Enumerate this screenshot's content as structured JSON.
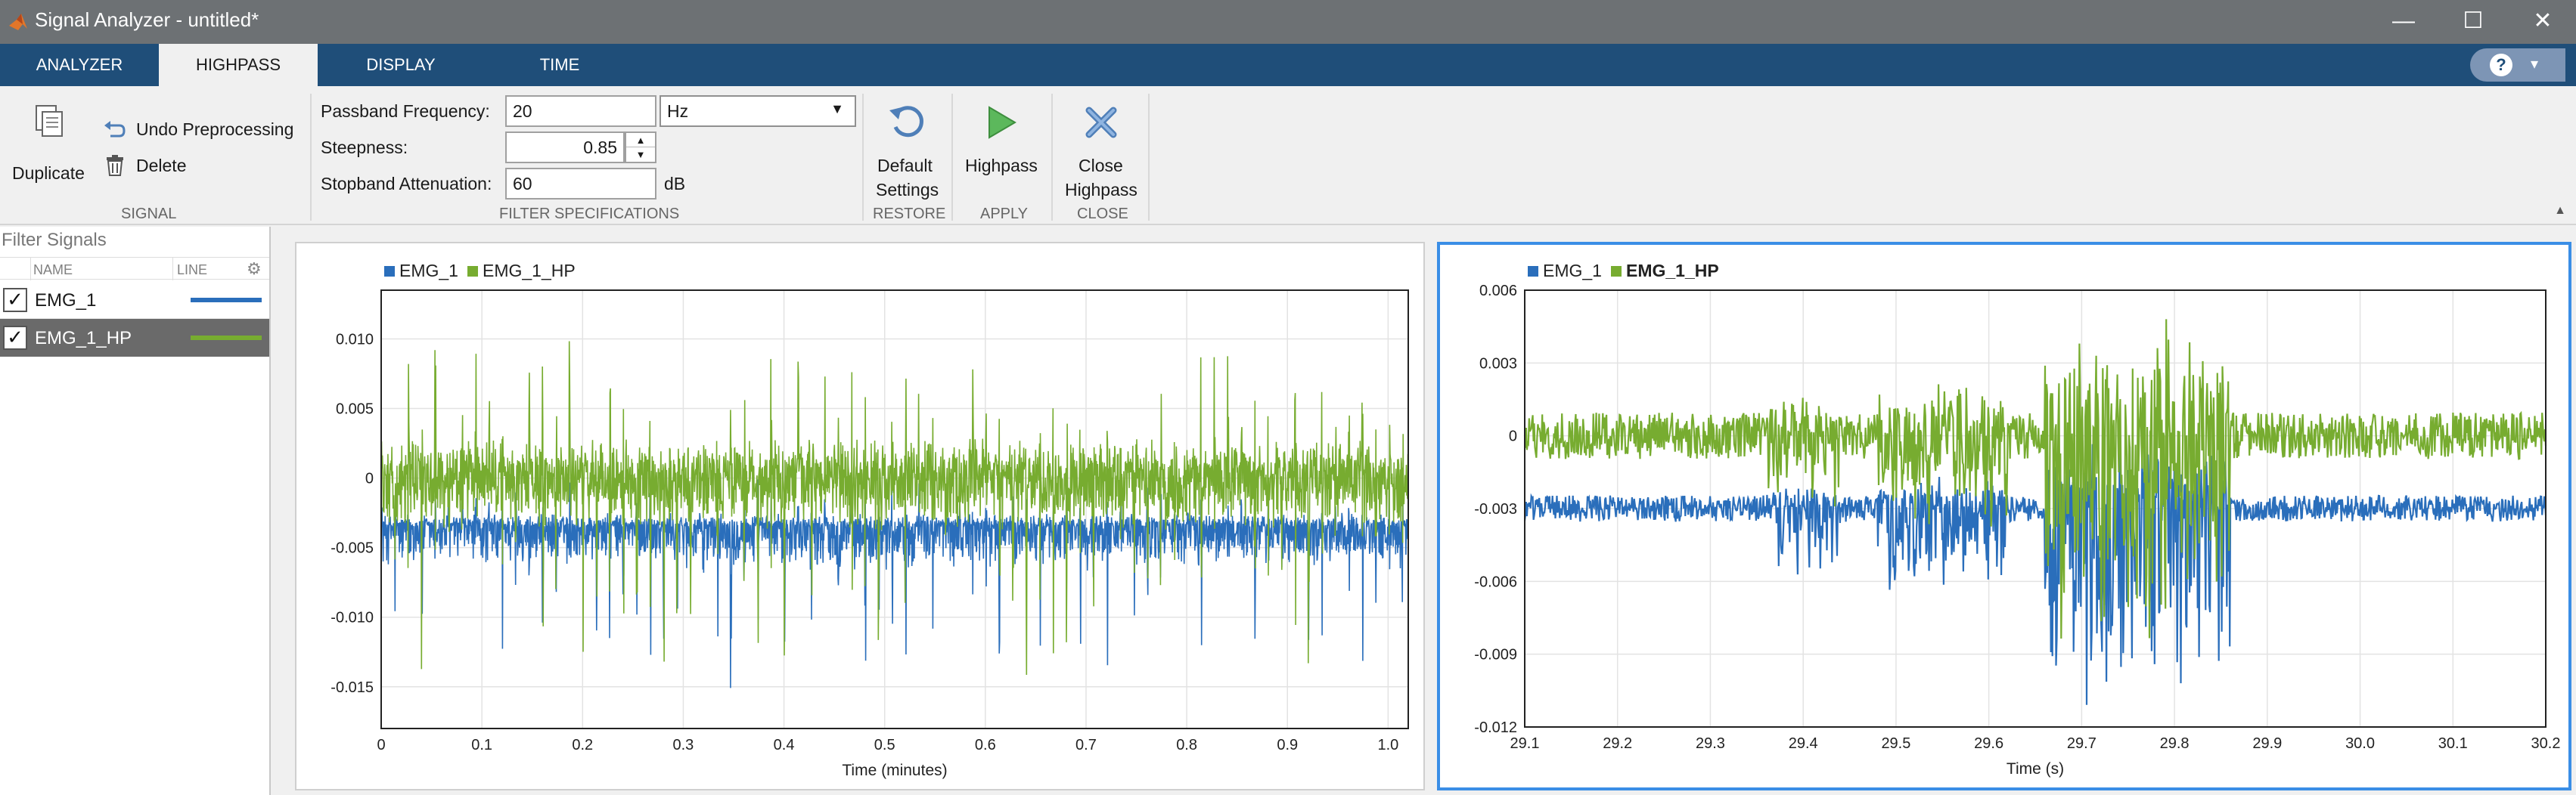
{
  "window": {
    "title": "Signal Analyzer - untitled*"
  },
  "tabs": [
    "ANALYZER",
    "HIGHPASS",
    "DISPLAY",
    "TIME"
  ],
  "ribbon": {
    "signal": {
      "duplicate": "Duplicate",
      "undo": "Undo Preprocessing",
      "delete": "Delete",
      "group": "SIGNAL"
    },
    "filter": {
      "passband_label": "Passband Frequency:",
      "passband_value": "20",
      "passband_unit": "Hz",
      "steepness_label": "Steepness:",
      "steepness_value": "0.85",
      "stopband_label": "Stopband Attenuation:",
      "stopband_value": "60",
      "stopband_unit": "dB",
      "group": "FILTER SPECIFICATIONS"
    },
    "restore": {
      "line1": "Default",
      "line2": "Settings",
      "group": "RESTORE"
    },
    "apply": {
      "label": "Highpass",
      "group": "APPLY"
    },
    "close": {
      "line1": "Close",
      "line2": "Highpass",
      "group": "CLOSE"
    }
  },
  "signals_panel": {
    "filter_placeholder": "Filter Signals",
    "col_name": "NAME",
    "col_line": "LINE",
    "rows": [
      {
        "name": "EMG_1",
        "checked": "✓",
        "color": "#2a6ebb"
      },
      {
        "name": "EMG_1_HP",
        "checked": "✓",
        "color": "#77ac30"
      }
    ]
  },
  "colors": {
    "emg": "#2a6ebb",
    "emg_hp": "#77ac30",
    "accent": "#1f4e79",
    "selected": "#3a8ee6"
  },
  "chart_data": [
    {
      "type": "line",
      "xlabel": "Time (minutes)",
      "ylabel": "",
      "xlim": [
        0,
        1.02
      ],
      "ylim": [
        -0.018,
        0.0135
      ],
      "xticks": [
        "0",
        "0.1",
        "0.2",
        "0.3",
        "0.4",
        "0.5",
        "0.6",
        "0.7",
        "0.8",
        "0.9",
        "1.0"
      ],
      "yticks": [
        "0.010",
        "0.005",
        "0",
        "-0.005",
        "-0.010",
        "-0.015"
      ],
      "legend": "top-left",
      "series": [
        {
          "name": "EMG_1",
          "baseline": -0.0035,
          "min": -0.0165,
          "max": 0.0005
        },
        {
          "name": "EMG_1_HP",
          "baseline": 0.0,
          "min": -0.0155,
          "max": 0.0118
        }
      ]
    },
    {
      "type": "line",
      "xlabel": "Time (s)",
      "ylabel": "",
      "xlim": [
        29.1,
        30.2
      ],
      "ylim": [
        -0.012,
        0.006
      ],
      "xticks": [
        "29.1",
        "29.2",
        "29.3",
        "29.4",
        "29.5",
        "29.6",
        "29.7",
        "29.8",
        "29.9",
        "30.0",
        "30.1",
        "30.2"
      ],
      "yticks": [
        "0.006",
        "0.003",
        "0",
        "-0.003",
        "-0.006",
        "-0.009",
        "-0.012"
      ],
      "legend": "top-left",
      "series": [
        {
          "name": "EMG_1",
          "baseline": -0.003,
          "min": -0.0115,
          "max": 0.0
        },
        {
          "name": "EMG_1_HP",
          "baseline": 0.0,
          "min": -0.0088,
          "max": 0.0053
        }
      ]
    }
  ]
}
